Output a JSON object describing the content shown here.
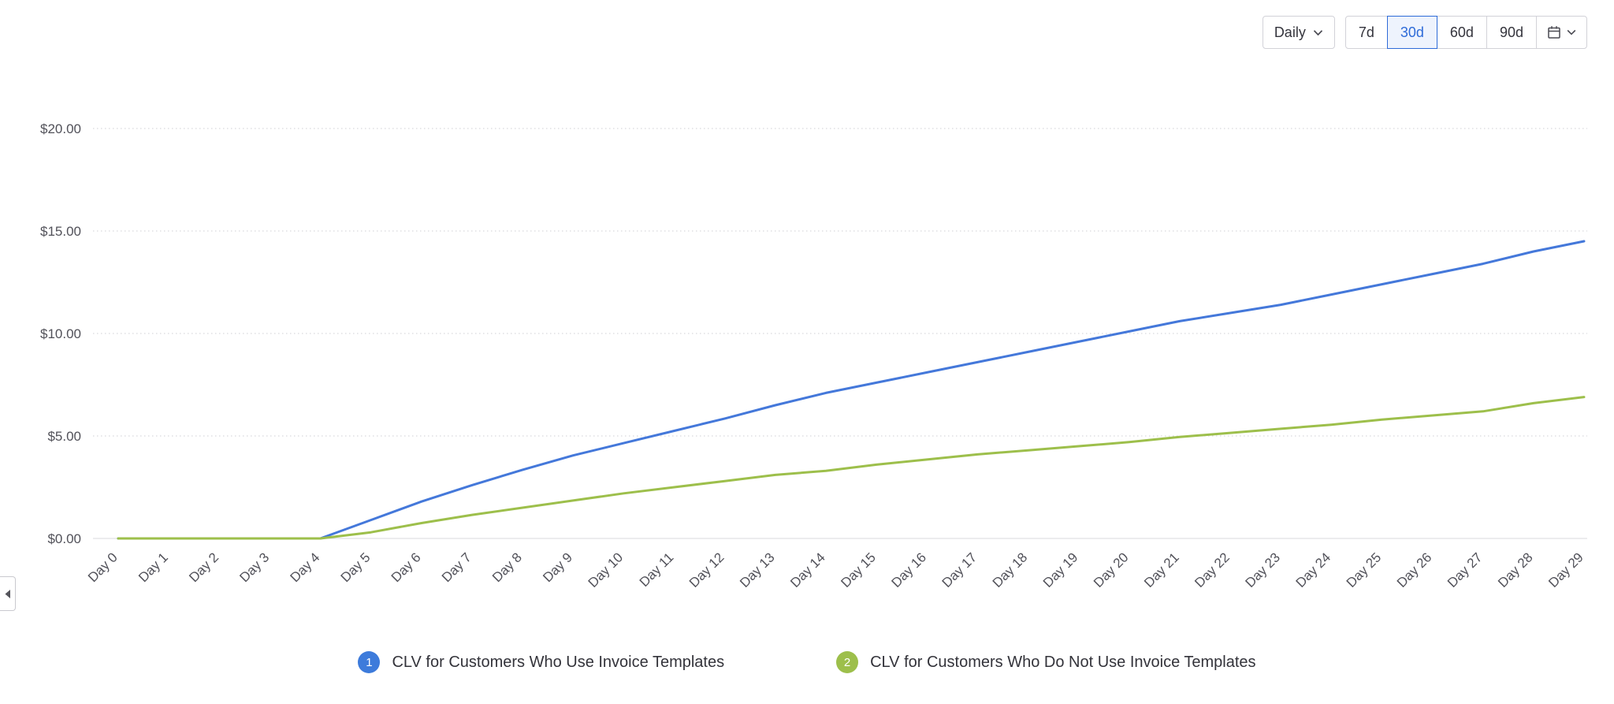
{
  "toolbar": {
    "granularity_label": "Daily",
    "ranges": [
      {
        "label": "7d"
      },
      {
        "label": "30d"
      },
      {
        "label": "60d"
      },
      {
        "label": "90d"
      }
    ],
    "selected_range": "30d",
    "accent_color": "#2e6bd8"
  },
  "chart_data": {
    "type": "line",
    "x": [
      "Day 0",
      "Day 1",
      "Day 2",
      "Day 3",
      "Day 4",
      "Day 5",
      "Day 6",
      "Day 7",
      "Day 8",
      "Day 9",
      "Day 10",
      "Day 11",
      "Day 12",
      "Day 13",
      "Day 14",
      "Day 15",
      "Day 16",
      "Day 17",
      "Day 18",
      "Day 19",
      "Day 20",
      "Day 21",
      "Day 22",
      "Day 23",
      "Day 24",
      "Day 25",
      "Day 26",
      "Day 27",
      "Day 28",
      "Day 29"
    ],
    "ylim": [
      0,
      20
    ],
    "yticks": [
      {
        "value": 0,
        "label": "$0.00"
      },
      {
        "value": 5,
        "label": "$5.00"
      },
      {
        "value": 10,
        "label": "$10.00"
      },
      {
        "value": 15,
        "label": "$15.00"
      },
      {
        "value": 20,
        "label": "$20.00"
      }
    ],
    "grid": "horizontal-dotted",
    "legend_position": "bottom",
    "series": [
      {
        "name": "CLV for Customers Who Use Invoice Templates",
        "color": "#4478da",
        "values": [
          0,
          0,
          0,
          0,
          0,
          0.9,
          1.8,
          2.6,
          3.35,
          4.05,
          4.65,
          5.25,
          5.85,
          6.5,
          7.1,
          7.6,
          8.1,
          8.6,
          9.1,
          9.6,
          10.1,
          10.6,
          11.0,
          11.4,
          11.9,
          12.4,
          12.9,
          13.4,
          14.0,
          14.5
        ]
      },
      {
        "name": "CLV for Customers Who Do Not Use Invoice Templates",
        "color": "#9dbf4b",
        "values": [
          0,
          0,
          0,
          0,
          0,
          0.3,
          0.75,
          1.15,
          1.5,
          1.85,
          2.2,
          2.5,
          2.8,
          3.1,
          3.3,
          3.6,
          3.85,
          4.1,
          4.3,
          4.5,
          4.7,
          4.95,
          5.15,
          5.35,
          5.55,
          5.8,
          6.0,
          6.2,
          6.6,
          6.9
        ]
      }
    ]
  },
  "legend": [
    {
      "index": "1",
      "label": "CLV for Customers Who Use Invoice Templates",
      "color": "#3d7bdb"
    },
    {
      "index": "2",
      "label": "CLV for Customers Who Do Not Use Invoice Templates",
      "color": "#9dbf4b"
    }
  ]
}
